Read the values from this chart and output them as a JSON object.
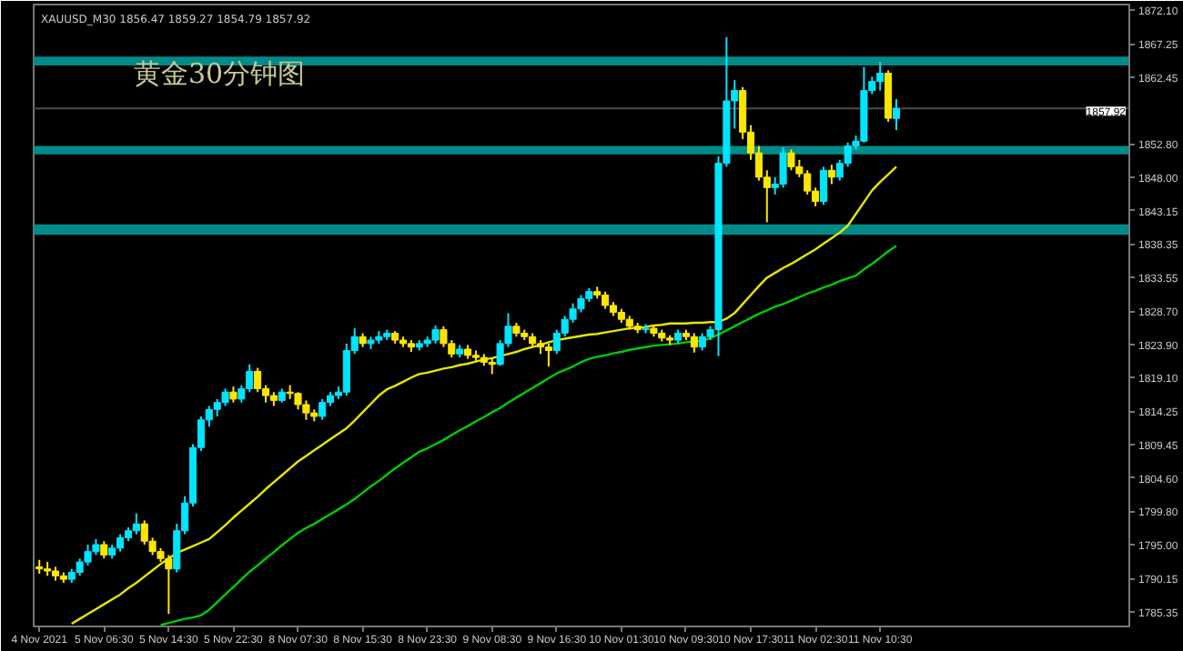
{
  "chart_data": {
    "type": "candlestick",
    "title": "黄金30分钟图",
    "annotations": [
      "XAUUSD_M30 1856.47 1859.27 1854.79 1857.92"
    ],
    "categories": [
      "4 Nov 2021",
      null,
      null,
      null,
      null,
      null,
      null,
      null,
      "5 Nov 06:30",
      null,
      null,
      null,
      null,
      null,
      null,
      null,
      "5 Nov 14:30",
      null,
      null,
      null,
      null,
      null,
      null,
      null,
      "5 Nov 22:30",
      null,
      null,
      null,
      null,
      null,
      null,
      null,
      "8 Nov 07:30",
      null,
      null,
      null,
      null,
      null,
      null,
      null,
      "8 Nov 15:30",
      null,
      null,
      null,
      null,
      null,
      null,
      null,
      "8 Nov 23:30",
      null,
      null,
      null,
      null,
      null,
      null,
      null,
      "9 Nov 08:30",
      null,
      null,
      null,
      null,
      null,
      null,
      null,
      "9 Nov 16:30",
      null,
      null,
      null,
      null,
      null,
      null,
      null,
      "10 Nov 01:30",
      null,
      null,
      null,
      null,
      null,
      null,
      null,
      "10 Nov 09:30",
      null,
      null,
      null,
      null,
      null,
      null,
      null,
      "10 Nov 17:30",
      null,
      null,
      null,
      null,
      null,
      null,
      null,
      "11 Nov 02:30",
      null,
      null,
      null,
      null,
      null,
      null,
      null,
      "11 Nov 10:30",
      null,
      null
    ],
    "ylim": [
      1783.2,
      1872.9
    ],
    "yticks": [
      {
        "value": 1872.1,
        "label": "1872.10"
      },
      {
        "value": 1867.25,
        "label": "1867.25"
      },
      {
        "value": 1862.45,
        "label": "1862.45"
      },
      {
        "value": 1852.8,
        "label": "1852.80"
      },
      {
        "value": 1848.0,
        "label": "1848.00"
      },
      {
        "value": 1843.15,
        "label": "1843.15"
      },
      {
        "value": 1838.35,
        "label": "1838.35"
      },
      {
        "value": 1833.55,
        "label": "1833.55"
      },
      {
        "value": 1828.7,
        "label": "1828.70"
      },
      {
        "value": 1823.9,
        "label": "1823.90"
      },
      {
        "value": 1819.1,
        "label": "1819.10"
      },
      {
        "value": 1814.25,
        "label": "1814.25"
      },
      {
        "value": 1809.45,
        "label": "1809.45"
      },
      {
        "value": 1804.6,
        "label": "1804.60"
      },
      {
        "value": 1799.8,
        "label": "1799.80"
      },
      {
        "value": 1795.0,
        "label": "1795.00"
      },
      {
        "value": 1790.15,
        "label": "1790.15"
      },
      {
        "value": 1785.35,
        "label": "1785.35"
      }
    ],
    "grid": false,
    "ref_lines": [
      {
        "axis": "y",
        "value": 1857.92,
        "label": "1857.92",
        "color": "#4d4d4d"
      }
    ],
    "bands": [
      {
        "axis": "y",
        "from": 1864.1,
        "to": 1865.4,
        "color": "#008b8b"
      },
      {
        "axis": "y",
        "from": 1851.3,
        "to": 1852.5,
        "color": "#008b8b"
      },
      {
        "axis": "y",
        "from": 1839.7,
        "to": 1841.2,
        "color": "#008b8b"
      }
    ],
    "series": [
      {
        "type": "line",
        "color": "#e6e600",
        "values": [
          null,
          null,
          null,
          null,
          1783.6,
          1784.3,
          1785.0,
          1785.7,
          1786.4,
          1787.1,
          1787.8,
          1788.7,
          1789.5,
          1790.4,
          1791.3,
          1792.2,
          1793.0,
          1793.8,
          1794.3,
          1794.8,
          1795.3,
          1795.8,
          1796.8,
          1797.8,
          1798.9,
          1799.9,
          1800.9,
          1801.9,
          1803.0,
          1804.0,
          1805.0,
          1806.0,
          1807.0,
          1807.8,
          1808.6,
          1809.4,
          1810.2,
          1811.0,
          1811.8,
          1812.9,
          1814.1,
          1815.3,
          1816.5,
          1817.4,
          1817.9,
          1818.5,
          1819.1,
          1819.6,
          1819.8,
          1820.1,
          1820.4,
          1820.6,
          1820.9,
          1821.1,
          1821.4,
          1821.7,
          1821.9,
          1822.2,
          1822.5,
          1822.8,
          1823.2,
          1823.5,
          1823.8,
          1824.2,
          1824.5,
          1824.7,
          1824.9,
          1825.1,
          1825.3,
          1825.4,
          1825.6,
          1825.8,
          1826.0,
          1826.2,
          1826.3,
          1826.4,
          1826.6,
          1826.7,
          1826.9,
          1826.9,
          1826.9,
          1827.0,
          1827.0,
          1827.1,
          1827.1,
          1827.6,
          1828.4,
          1829.7,
          1831.0,
          1832.3,
          1833.5,
          1834.2,
          1834.9,
          1835.5,
          1836.2,
          1836.9,
          1837.6,
          1838.4,
          1839.2,
          1840.0,
          1841.0,
          1842.7,
          1844.4,
          1846.1,
          1847.3,
          1848.4,
          1849.5
        ]
      },
      {
        "type": "line",
        "color": "#00cc00",
        "values": [
          null,
          null,
          null,
          null,
          null,
          null,
          null,
          null,
          null,
          null,
          null,
          null,
          null,
          null,
          null,
          1783.4,
          1783.7,
          1784.0,
          1784.3,
          1784.5,
          1784.8,
          1785.6,
          1786.7,
          1787.8,
          1788.9,
          1790.0,
          1791.1,
          1792.0,
          1793.0,
          1793.9,
          1794.9,
          1795.8,
          1796.7,
          1797.4,
          1798.0,
          1798.7,
          1799.4,
          1800.1,
          1800.8,
          1801.6,
          1802.5,
          1803.4,
          1804.2,
          1805.1,
          1806.0,
          1806.8,
          1807.6,
          1808.4,
          1808.9,
          1809.5,
          1810.1,
          1810.8,
          1811.5,
          1812.1,
          1812.8,
          1813.4,
          1814.1,
          1814.7,
          1815.5,
          1816.2,
          1816.9,
          1817.6,
          1818.3,
          1819.0,
          1819.7,
          1820.2,
          1820.7,
          1821.3,
          1821.8,
          1822.1,
          1822.3,
          1822.6,
          1822.8,
          1823.1,
          1823.3,
          1823.5,
          1823.7,
          1823.8,
          1823.9,
          1824.0,
          1824.2,
          1824.3,
          1824.4,
          1824.8,
          1825.3,
          1825.9,
          1826.5,
          1827.1,
          1827.7,
          1828.3,
          1828.8,
          1829.3,
          1829.7,
          1830.2,
          1830.7,
          1831.2,
          1831.6,
          1832.1,
          1832.5,
          1833.0,
          1833.4,
          1833.8,
          1834.7,
          1835.5,
          1836.4,
          1837.3,
          1838.1
        ]
      },
      {
        "colors": [
          "#ffe600",
          "#ffe600",
          "#ffe600",
          "#ffe600",
          "#00e5ff",
          "#00e5ff",
          "#00e5ff",
          "#00e5ff",
          "#ffe600",
          "#00e5ff",
          "#00e5ff",
          "#00e5ff",
          "#00e5ff",
          "#ffe600",
          "#ffe600",
          "#ffe600",
          "#ffe600",
          "#00e5ff",
          "#00e5ff",
          "#00e5ff",
          "#00e5ff",
          "#00e5ff",
          "#00e5ff",
          "#00e5ff",
          "#ffe600",
          "#00e5ff",
          "#00e5ff",
          "#ffe600",
          "#ffe600",
          "#ffe600",
          "#00e5ff",
          "#ffe600",
          "#ffe600",
          "#ffe600",
          "#ffe600",
          "#00e5ff",
          "#00e5ff",
          "#00e5ff",
          "#00e5ff",
          "#00e5ff",
          "#ffe600",
          "#00e5ff",
          "#00e5ff",
          "#00e5ff",
          "#ffe600",
          "#ffe600",
          "#ffe600",
          "#00e5ff",
          "#00e5ff",
          "#00e5ff",
          "#ffe600",
          "#ffe600",
          "#00e5ff",
          "#ffe600",
          "#ffe600",
          "#ffe600",
          "#ffe600",
          "#00e5ff",
          "#00e5ff",
          "#ffe600",
          "#ffe600",
          "#ffe600",
          "#ffe600",
          "#ffe600",
          "#00e5ff",
          "#00e5ff",
          "#00e5ff",
          "#00e5ff",
          "#00e5ff",
          "#ffe600",
          "#ffe600",
          "#ffe600",
          "#ffe600",
          "#ffe600",
          "#ffe600",
          "#00e5ff",
          "#ffe600",
          "#ffe600",
          "#ffe600",
          "#00e5ff",
          "#ffe600",
          "#ffe600",
          "#00e5ff",
          "#00e5ff",
          "#00e5ff",
          "#00e5ff",
          "#00e5ff",
          "#ffe600",
          "#ffe600",
          "#ffe600",
          "#ffe600",
          "#00e5ff",
          "#00e5ff",
          "#ffe600",
          "#ffe600",
          "#ffe600",
          "#ffe600",
          "#00e5ff",
          "#ffe600",
          "#00e5ff",
          "#00e5ff",
          "#00e5ff",
          "#00e5ff",
          "#00e5ff",
          "#00e5ff",
          "#ffe600",
          "#00e5ff"
        ],
        "ohlc": [
          [
            1791.8,
            1792.8,
            1790.8,
            1791.5
          ],
          [
            1791.5,
            1792.5,
            1790.5,
            1791.2
          ],
          [
            1791.2,
            1791.8,
            1789.8,
            1790.5
          ],
          [
            1790.5,
            1791,
            1789.5,
            1790
          ],
          [
            1790,
            1791.5,
            1789.5,
            1791
          ],
          [
            1791,
            1793,
            1790.5,
            1792.5
          ],
          [
            1792.5,
            1795,
            1792,
            1794
          ],
          [
            1794,
            1795.8,
            1793.5,
            1795
          ],
          [
            1795,
            1795.5,
            1793,
            1793.5
          ],
          [
            1793.5,
            1795,
            1793,
            1794.5
          ],
          [
            1794.5,
            1796.5,
            1794,
            1796
          ],
          [
            1796,
            1797.5,
            1795.5,
            1797
          ],
          [
            1797,
            1799.5,
            1796.5,
            1798
          ],
          [
            1798,
            1798.5,
            1795,
            1795.5
          ],
          [
            1795.5,
            1796,
            1793.5,
            1794
          ],
          [
            1794,
            1794.5,
            1792.5,
            1793
          ],
          [
            1793,
            1793.5,
            1785,
            1791.5
          ],
          [
            1791.5,
            1798,
            1791,
            1797
          ],
          [
            1797,
            1802,
            1796.5,
            1801
          ],
          [
            1801,
            1809.5,
            1800.5,
            1809
          ],
          [
            1809,
            1813.5,
            1808.5,
            1813
          ],
          [
            1813,
            1815,
            1812,
            1814.5
          ],
          [
            1814.5,
            1816,
            1813.5,
            1815.5
          ],
          [
            1815.5,
            1817.5,
            1815,
            1817
          ],
          [
            1817,
            1817.8,
            1815.5,
            1816
          ],
          [
            1816,
            1818,
            1815.5,
            1817.5
          ],
          [
            1817.5,
            1821,
            1817,
            1820
          ],
          [
            1820,
            1820.5,
            1817,
            1817.5
          ],
          [
            1817.5,
            1818,
            1815.5,
            1816.5
          ],
          [
            1816.5,
            1817,
            1815,
            1815.8
          ],
          [
            1815.8,
            1817.5,
            1815.5,
            1817
          ],
          [
            1817,
            1818,
            1816,
            1816.8
          ],
          [
            1816.8,
            1817,
            1814.5,
            1815.2
          ],
          [
            1815.2,
            1815.8,
            1813,
            1814
          ],
          [
            1814,
            1814.5,
            1812.8,
            1813.5
          ],
          [
            1813.5,
            1816,
            1813,
            1815.5
          ],
          [
            1815.5,
            1817,
            1815,
            1816.5
          ],
          [
            1816.5,
            1817.8,
            1816,
            1817
          ],
          [
            1817,
            1824,
            1816.5,
            1823
          ],
          [
            1823,
            1826.2,
            1822.5,
            1825
          ],
          [
            1825,
            1825.5,
            1823.5,
            1824
          ],
          [
            1824,
            1825,
            1823.2,
            1824.5
          ],
          [
            1824.5,
            1825.8,
            1824,
            1825
          ],
          [
            1825,
            1826,
            1824.5,
            1825.5
          ],
          [
            1825.5,
            1825.8,
            1824,
            1824.5
          ],
          [
            1824.5,
            1825,
            1823.5,
            1824
          ],
          [
            1824,
            1824.5,
            1822.8,
            1823.5
          ],
          [
            1823.5,
            1824.5,
            1823,
            1824
          ],
          [
            1824,
            1825,
            1823.5,
            1824.5
          ],
          [
            1824.5,
            1826.6,
            1824,
            1826
          ],
          [
            1826,
            1826.5,
            1823.5,
            1824
          ],
          [
            1824,
            1824.5,
            1822,
            1822.5
          ],
          [
            1822.5,
            1823.8,
            1822,
            1823.2
          ],
          [
            1823.2,
            1823.8,
            1821.8,
            1822.3
          ],
          [
            1822.3,
            1823,
            1821.5,
            1822
          ],
          [
            1822,
            1822.5,
            1820.8,
            1821.3
          ],
          [
            1821.3,
            1822,
            1819.6,
            1821
          ],
          [
            1821,
            1824.5,
            1820.8,
            1824
          ],
          [
            1824,
            1828.4,
            1823.5,
            1826.5
          ],
          [
            1826.5,
            1827,
            1825,
            1825.5
          ],
          [
            1825.5,
            1826,
            1824.5,
            1825
          ],
          [
            1825,
            1825.5,
            1823.5,
            1824
          ],
          [
            1824,
            1824.5,
            1822.5,
            1823.5
          ],
          [
            1823.5,
            1824,
            1820.7,
            1823
          ],
          [
            1823,
            1826,
            1822.5,
            1825.5
          ],
          [
            1825.5,
            1828,
            1825,
            1827.5
          ],
          [
            1827.5,
            1829.8,
            1827,
            1829
          ],
          [
            1829,
            1831,
            1828.5,
            1830.5
          ],
          [
            1830.5,
            1832,
            1830,
            1831.5
          ],
          [
            1831.5,
            1832.2,
            1830.5,
            1831
          ],
          [
            1831,
            1831.5,
            1829,
            1829.5
          ],
          [
            1829.5,
            1830,
            1828,
            1828.5
          ],
          [
            1828.5,
            1829,
            1827,
            1827.5
          ],
          [
            1827.5,
            1828,
            1826,
            1826.5
          ],
          [
            1826.5,
            1827,
            1825.5,
            1826
          ],
          [
            1826,
            1826.8,
            1825.5,
            1826.2
          ],
          [
            1826.2,
            1826.5,
            1825,
            1825.5
          ],
          [
            1825.5,
            1826,
            1824.3,
            1824.8
          ],
          [
            1824.8,
            1825.2,
            1823.8,
            1824.5
          ],
          [
            1824.5,
            1826,
            1824,
            1825.5
          ],
          [
            1825.5,
            1826,
            1824.5,
            1825
          ],
          [
            1825,
            1825.5,
            1822.7,
            1823.5
          ],
          [
            1823.5,
            1825.5,
            1823,
            1825
          ],
          [
            1825,
            1826.5,
            1824.5,
            1826
          ],
          [
            1826,
            1851,
            1822.2,
            1850
          ],
          [
            1850,
            1868.2,
            1849.5,
            1859
          ],
          [
            1859,
            1862,
            1855,
            1860.5
          ],
          [
            1860.5,
            1861,
            1853.5,
            1854.5
          ],
          [
            1854.5,
            1855.5,
            1850.5,
            1851.5
          ],
          [
            1851.5,
            1852.5,
            1847.5,
            1848
          ],
          [
            1848,
            1849,
            1841.5,
            1846.5
          ],
          [
            1846.5,
            1848,
            1845.5,
            1847
          ],
          [
            1847,
            1852.3,
            1846.5,
            1851.5
          ],
          [
            1851.5,
            1852,
            1849,
            1849.5
          ],
          [
            1849.5,
            1850.5,
            1848,
            1848.5
          ],
          [
            1848.5,
            1849,
            1845.5,
            1846
          ],
          [
            1846,
            1846.5,
            1843.8,
            1844.5
          ],
          [
            1844.5,
            1849.5,
            1844,
            1849
          ],
          [
            1849,
            1849.8,
            1847,
            1848
          ],
          [
            1848,
            1850.5,
            1847.5,
            1850
          ],
          [
            1850,
            1853,
            1849.5,
            1852.5
          ],
          [
            1852.5,
            1854,
            1852,
            1853.2
          ],
          [
            1853.2,
            1863.9,
            1853,
            1860.5
          ],
          [
            1860.5,
            1862.5,
            1860,
            1861.8
          ],
          [
            1861.8,
            1864.6,
            1860.5,
            1863
          ],
          [
            1863,
            1863.4,
            1856,
            1856.5
          ],
          [
            1856.47,
            1859.27,
            1854.79,
            1857.92
          ]
        ]
      }
    ]
  }
}
